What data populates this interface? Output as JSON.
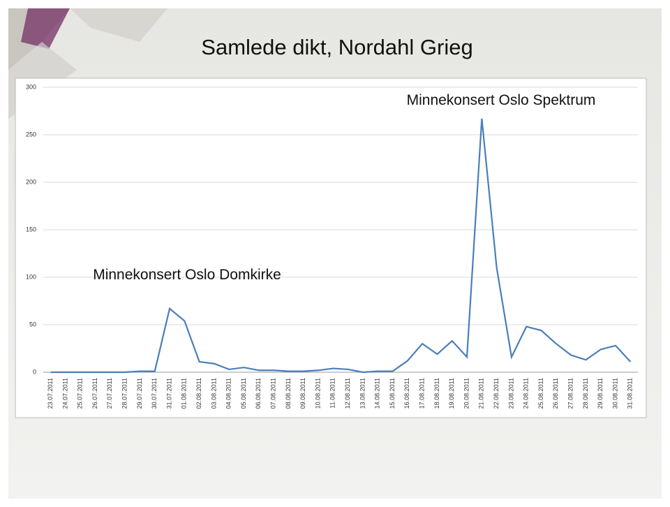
{
  "chart_data": {
    "type": "line",
    "title": "Samlede dikt, Nordahl Grieg",
    "annotations": [
      "Minnekonsert Oslo Spektrum",
      "Minnekonsert Oslo Domkirke"
    ],
    "categories": [
      "23.07.2011",
      "24.07.2011",
      "25.07.2011",
      "26.07.2011",
      "27.07.2011",
      "28.07.2011",
      "29.07.2011",
      "30.07.2011",
      "31.07.2011",
      "01.08.2011",
      "02.08.2011",
      "03.08.2011",
      "04.08.2011",
      "05.08.2011",
      "06.08.2011",
      "07.08.2011",
      "08.08.2011",
      "09.08.2011",
      "10.08.2011",
      "11.08.2011",
      "12.08.2011",
      "13.08.2011",
      "14.08.2011",
      "15.08.2011",
      "16.08.2011",
      "17.08.2011",
      "18.08.2011",
      "19.08.2011",
      "20.08.2011",
      "21.08.2011",
      "22.08.2011",
      "23.08.2011",
      "24.08.2011",
      "25.08.2011",
      "26.08.2011",
      "27.08.2011",
      "28.08.2011",
      "29.08.2011",
      "30.08.2011",
      "31.08.2011"
    ],
    "values": [
      0,
      0,
      0,
      0,
      0,
      0,
      1,
      1,
      67,
      54,
      11,
      9,
      3,
      5,
      2,
      2,
      1,
      1,
      2,
      4,
      3,
      0,
      1,
      1,
      12,
      30,
      19,
      33,
      16,
      267,
      110,
      16,
      48,
      44,
      30,
      18,
      13,
      24,
      28,
      11
    ],
    "color": "#4a7ebb",
    "ylim": [
      0,
      300
    ],
    "yticks": [
      0,
      50,
      100,
      150,
      200,
      250,
      300
    ],
    "grid": true
  }
}
